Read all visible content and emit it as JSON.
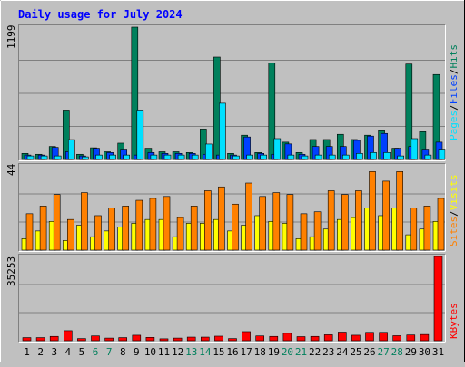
{
  "chart_data": [
    {
      "type": "bar",
      "title": "Daily usage for July 2024",
      "categories": [
        "1",
        "2",
        "3",
        "4",
        "5",
        "6",
        "7",
        "8",
        "9",
        "10",
        "11",
        "12",
        "13",
        "14",
        "15",
        "16",
        "17",
        "18",
        "19",
        "20",
        "21",
        "22",
        "23",
        "24",
        "25",
        "26",
        "27",
        "28",
        "29",
        "30",
        "31"
      ],
      "weekend_categories": [
        "6",
        "7",
        "13",
        "14",
        "20",
        "21",
        "27",
        "28"
      ],
      "ymax_label": "1199",
      "ylim": [
        0,
        1199
      ],
      "axis_legend": [
        "Pages",
        "Files",
        "Hits"
      ],
      "series": [
        {
          "name": "Hits",
          "values": [
            55,
            47,
            118,
            448,
            47,
            106,
            70,
            148,
            1199,
            102,
            70,
            70,
            63,
            276,
            928,
            55,
            220,
            63,
            873,
            157,
            63,
            181,
            181,
            228,
            181,
            220,
            260,
            102,
            865,
            252,
            770
          ]
        },
        {
          "name": "Files",
          "values": [
            40,
            40,
            110,
            70,
            32,
            102,
            63,
            94,
            40,
            63,
            55,
            55,
            55,
            47,
            40,
            40,
            204,
            55,
            47,
            141,
            47,
            118,
            118,
            118,
            173,
            212,
            236,
            102,
            118,
            94,
            157
          ]
        },
        {
          "name": "Pages",
          "values": [
            32,
            32,
            32,
            180,
            24,
            40,
            40,
            40,
            448,
            40,
            40,
            40,
            40,
            140,
            510,
            32,
            40,
            40,
            189,
            40,
            32,
            40,
            40,
            40,
            55,
            63,
            63,
            32,
            189,
            40,
            94
          ]
        }
      ]
    },
    {
      "type": "bar",
      "ymax_label": "44",
      "ylim": [
        0,
        44
      ],
      "axis_legend": [
        "Sites",
        "Visits"
      ],
      "series": [
        {
          "name": "Visits",
          "values": [
            19,
            23,
            29,
            16,
            30,
            18,
            22,
            23,
            26,
            27,
            28,
            17,
            23,
            31,
            33,
            24,
            35,
            28,
            30,
            29,
            19,
            20,
            31,
            29,
            31,
            41,
            36,
            41,
            22,
            23,
            27
          ]
        },
        {
          "name": "Sites",
          "values": [
            6,
            10,
            15,
            5,
            13,
            7,
            10,
            12,
            14,
            16,
            16,
            7,
            14,
            14,
            16,
            10,
            13,
            18,
            15,
            14,
            6,
            7,
            11,
            16,
            17,
            22,
            18,
            22,
            8,
            11,
            15
          ]
        }
      ]
    },
    {
      "type": "bar",
      "ymax_label": "35253",
      "ylim": [
        0,
        35253
      ],
      "axis_legend": [
        "KBytes"
      ],
      "series": [
        {
          "name": "KBytes",
          "values": [
            1300,
            1300,
            1800,
            4200,
            900,
            2000,
            1100,
            1300,
            2300,
            1400,
            800,
            1100,
            1500,
            1500,
            1900,
            900,
            3800,
            2000,
            1800,
            3100,
            1700,
            1800,
            2500,
            3600,
            2300,
            3500,
            3500,
            2100,
            2400,
            2600,
            35253
          ]
        }
      ]
    }
  ],
  "colors": {
    "background": "#c0c0c0",
    "plot_bg": "#c0c0c0",
    "title": "#0000ff",
    "grid": "#808080",
    "hits": "#00805c",
    "files": "#0040ff",
    "pages": "#00e0ff",
    "visits": "#ff8000",
    "sites": "#ffff00",
    "kbytes": "#ff0000",
    "weekday_label": "#000000",
    "weekend_label": "#00805c"
  }
}
